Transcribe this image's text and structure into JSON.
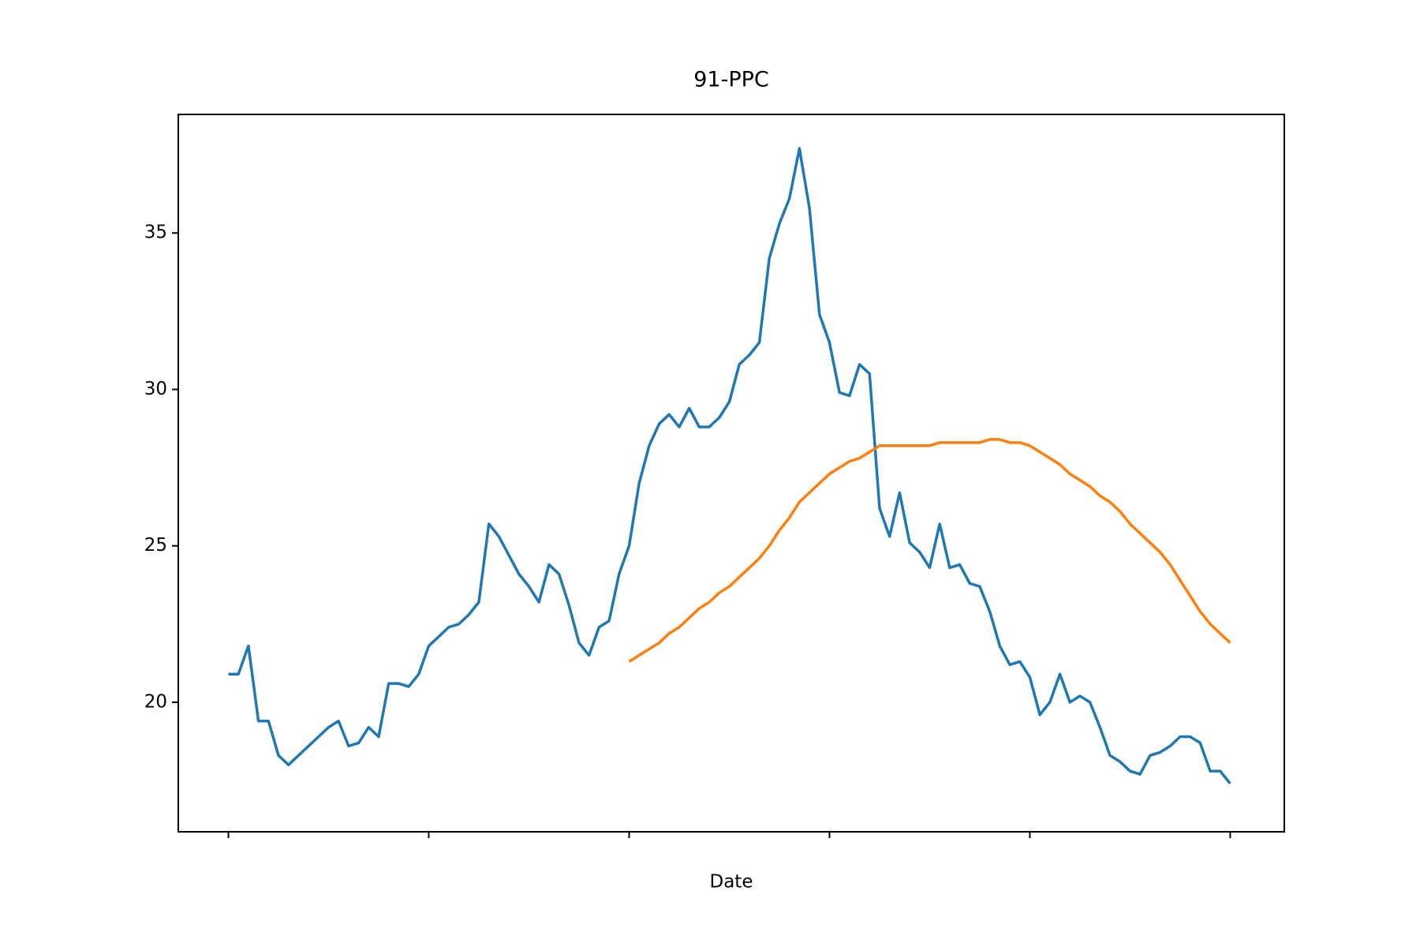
{
  "chart_data": {
    "type": "line",
    "title": "91-PPC",
    "x_label": "Date",
    "x": [
      0,
      5,
      10,
      15,
      20,
      25,
      30,
      35,
      40,
      45,
      50,
      55,
      60,
      65,
      70,
      75,
      80,
      85,
      90,
      95,
      100,
      105,
      110,
      115,
      120,
      125,
      130,
      135,
      140,
      145,
      150,
      155,
      160,
      165,
      170,
      175,
      180,
      185,
      190,
      195,
      200,
      205,
      210,
      215,
      220,
      225,
      230,
      235,
      240,
      245,
      250,
      255,
      260,
      265,
      270,
      275,
      280,
      285,
      290,
      295,
      300,
      305,
      310,
      315,
      320,
      325,
      330,
      335,
      340,
      345,
      350,
      355,
      360,
      365,
      370,
      375,
      380,
      385,
      390,
      395,
      400,
      405,
      410,
      415,
      420,
      425,
      430,
      435,
      440,
      445,
      450,
      455,
      460,
      465,
      470,
      475,
      480,
      485,
      490,
      495,
      500
    ],
    "series": [
      {
        "color": "#1f77b4",
        "values": [
          20.9,
          20.9,
          21.8,
          19.4,
          19.4,
          18.3,
          18.0,
          18.3,
          18.6,
          18.9,
          19.2,
          19.4,
          18.6,
          18.7,
          19.2,
          18.9,
          20.6,
          20.6,
          20.5,
          20.9,
          21.8,
          22.1,
          22.4,
          22.5,
          22.8,
          23.2,
          25.7,
          25.3,
          24.7,
          24.1,
          23.7,
          23.2,
          24.4,
          24.1,
          23.1,
          21.9,
          21.5,
          22.4,
          22.6,
          24.1,
          25.0,
          27.0,
          28.2,
          28.9,
          29.2,
          28.8,
          29.4,
          28.8,
          28.8,
          29.1,
          29.6,
          30.8,
          31.1,
          31.5,
          34.2,
          35.3,
          36.1,
          37.7,
          35.8,
          32.4,
          31.5,
          29.9,
          29.8,
          30.8,
          30.5,
          26.2,
          25.3,
          26.7,
          25.1,
          24.8,
          24.3,
          25.7,
          24.3,
          24.4,
          23.8,
          23.7,
          22.9,
          21.8,
          21.2,
          21.3,
          20.8,
          19.6,
          20.0,
          20.9,
          20.0,
          20.2,
          20.0,
          19.2,
          18.3,
          18.1,
          17.8,
          17.7,
          18.3,
          18.4,
          18.6,
          18.9,
          18.9,
          18.7,
          17.8,
          17.8,
          17.4
        ]
      },
      {
        "color": "#ff7f0e",
        "values": [
          null,
          null,
          null,
          null,
          null,
          null,
          null,
          null,
          null,
          null,
          null,
          null,
          null,
          null,
          null,
          null,
          null,
          null,
          null,
          null,
          null,
          null,
          null,
          null,
          null,
          null,
          null,
          null,
          null,
          null,
          null,
          null,
          null,
          null,
          null,
          null,
          null,
          null,
          null,
          null,
          21.3,
          21.5,
          21.7,
          21.9,
          22.2,
          22.4,
          22.7,
          23.0,
          23.2,
          23.5,
          23.7,
          24.0,
          24.3,
          24.6,
          25.0,
          25.5,
          25.9,
          26.4,
          26.7,
          27.0,
          27.3,
          27.5,
          27.7,
          27.8,
          28.0,
          28.2,
          28.2,
          28.2,
          28.2,
          28.2,
          28.2,
          28.3,
          28.3,
          28.3,
          28.3,
          28.3,
          28.4,
          28.4,
          28.3,
          28.3,
          28.2,
          28.0,
          27.8,
          27.6,
          27.3,
          27.1,
          26.9,
          26.6,
          26.4,
          26.1,
          25.7,
          25.4,
          25.1,
          24.8,
          24.4,
          23.9,
          23.4,
          22.9,
          22.5,
          22.2,
          21.9
        ]
      }
    ],
    "xlim": [
      -25,
      527
    ],
    "xticks": [
      0,
      100,
      200,
      300,
      400,
      500
    ],
    "xtick_labels": false,
    "ylim": [
      15.86,
      38.79
    ],
    "yticks": [
      20,
      25,
      30,
      35
    ],
    "grid": false
  }
}
